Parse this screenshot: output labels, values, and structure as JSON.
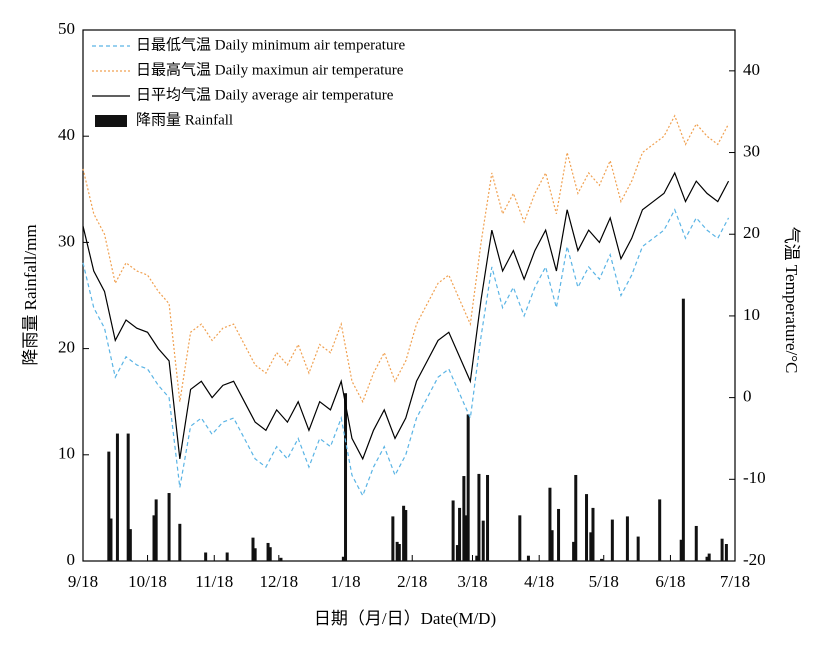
{
  "chart_data": {
    "type": "line",
    "xlabel": "日期（月/日）Date(M/D)",
    "ylabel": "降雨量 Rainfall/mm",
    "y2label": "气温 Temperature/°C",
    "x": [
      0,
      5,
      10,
      15,
      20,
      25,
      30,
      35,
      40,
      45,
      50,
      55,
      60,
      65,
      70,
      75,
      80,
      85,
      90,
      95,
      100,
      105,
      110,
      115,
      120,
      125,
      130,
      135,
      140,
      145,
      150,
      155,
      160,
      165,
      170,
      175,
      180,
      185,
      190,
      195,
      200,
      205,
      210,
      215,
      220,
      225,
      230,
      235,
      240,
      245,
      250,
      255,
      260,
      265,
      270,
      275,
      280,
      285,
      290,
      295,
      300
    ],
    "xlim": [
      0,
      303
    ],
    "xticks": [
      {
        "value": 0,
        "label": "9/18"
      },
      {
        "value": 30,
        "label": "10/18"
      },
      {
        "value": 61,
        "label": "11/18"
      },
      {
        "value": 91,
        "label": "12/18"
      },
      {
        "value": 122,
        "label": "1/18"
      },
      {
        "value": 153,
        "label": "2/18"
      },
      {
        "value": 181,
        "label": "3/18"
      },
      {
        "value": 212,
        "label": "4/18"
      },
      {
        "value": 242,
        "label": "5/18"
      },
      {
        "value": 273,
        "label": "6/18"
      },
      {
        "value": 303,
        "label": "7/18"
      }
    ],
    "ylim": [
      0,
      50
    ],
    "yticks": [
      0,
      10,
      20,
      30,
      40,
      50
    ],
    "y2lim": [
      -20,
      45
    ],
    "y2ticks": [
      -20,
      -10,
      0,
      10,
      20,
      30,
      40
    ],
    "series": [
      {
        "name": "日最低气温 Daily minimum air temperature",
        "color": "#5ab4e5",
        "dash": "4,3",
        "axis": "y2",
        "values": [
          16.5,
          11,
          8.5,
          2.5,
          5,
          4,
          3.5,
          1.5,
          0,
          -11,
          -3.5,
          -2.5,
          -4.5,
          -3,
          -2.5,
          -5,
          -7.5,
          -8.5,
          -6,
          -7.5,
          -5,
          -8.5,
          -5,
          -6,
          -2.5,
          -9.5,
          -12,
          -8.5,
          -6,
          -9.5,
          -7,
          -2.5,
          0,
          2.5,
          3.5,
          0.5,
          -2.5,
          7.5,
          16,
          11,
          13.5,
          10,
          13.5,
          16,
          11,
          18.5,
          13.5,
          16,
          14.5,
          17.5,
          12.5,
          15,
          18.5,
          19.5,
          20.5,
          23,
          19.5,
          22,
          20.5,
          19.5,
          22
        ]
      },
      {
        "name": "日最高气温 Daily maximun air temperature",
        "color": "#f0a050",
        "dash": "2,2",
        "axis": "y2",
        "values": [
          28,
          22.5,
          20,
          14,
          16.5,
          15.5,
          15,
          13,
          11.5,
          -0.5,
          8,
          9,
          7,
          8.5,
          9,
          6.5,
          4,
          3,
          5.5,
          4,
          6.5,
          3,
          6.5,
          5.5,
          9,
          2,
          -0.5,
          3,
          5.5,
          2,
          4.5,
          9,
          11.5,
          14,
          15,
          12,
          9,
          19,
          27.5,
          22.5,
          25,
          21.5,
          25,
          27.5,
          22.5,
          30,
          25,
          27.5,
          26,
          29,
          24,
          26.5,
          30,
          31,
          32,
          34.5,
          31,
          33.5,
          32,
          31,
          33.5
        ]
      },
      {
        "name": "日平均气温 Daily average air temperature",
        "color": "#000000",
        "axis": "y2",
        "values": [
          21,
          15.5,
          13,
          7,
          9.5,
          8.5,
          8,
          6,
          4.5,
          -7.5,
          1,
          2,
          0,
          1.5,
          2,
          -0.5,
          -3,
          -4,
          -1.5,
          -3,
          -0.5,
          -4,
          -0.5,
          -1.5,
          2,
          -5,
          -7.5,
          -4,
          -1.5,
          -5,
          -2.5,
          2,
          4.5,
          7,
          8,
          5,
          2,
          12,
          20.5,
          15.5,
          18,
          14.5,
          18,
          20.5,
          15.5,
          23,
          18,
          20.5,
          19,
          22,
          17,
          19.5,
          23,
          24,
          25,
          27.5,
          24,
          26.5,
          25,
          24,
          26.5
        ]
      }
    ],
    "rainfall": {
      "name": "降雨量 Rainfall",
      "color": "#111111",
      "type": "bar",
      "x": [
        12,
        13,
        16,
        21,
        22,
        33,
        34,
        40,
        45,
        57,
        67,
        79,
        80,
        86,
        87,
        92,
        121,
        122,
        144,
        146,
        147,
        149,
        150,
        172,
        174,
        175,
        177,
        178,
        179,
        183,
        184,
        186,
        188,
        203,
        207,
        217,
        218,
        221,
        228,
        229,
        234,
        236,
        237,
        241,
        246,
        253,
        258,
        268,
        278,
        279,
        285,
        290,
        291,
        297,
        299
      ],
      "values": [
        10.3,
        4,
        12,
        12,
        3,
        4.3,
        5.8,
        6.4,
        3.5,
        0.8,
        0.8,
        2.2,
        1.2,
        1.7,
        1.3,
        0.3,
        0.4,
        15.8,
        4.2,
        1.8,
        1.6,
        5.2,
        4.8,
        5.7,
        1.5,
        5,
        8,
        4.3,
        13.8,
        0.5,
        8.2,
        3.8,
        8.1,
        4.3,
        0.5,
        6.9,
        2.9,
        4.9,
        1.8,
        8.1,
        6.3,
        2.7,
        5,
        0.2,
        3.9,
        4.2,
        2.3,
        5.8,
        2,
        24.7,
        3.3,
        0.4,
        0.7,
        2.1,
        1.6
      ]
    }
  }
}
